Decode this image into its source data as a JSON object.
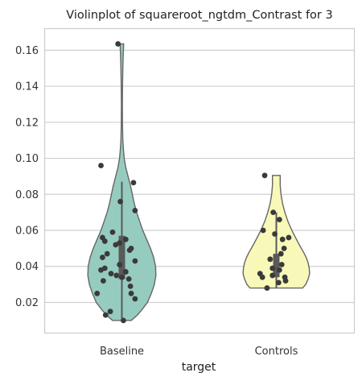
{
  "chart_data": {
    "type": "violin",
    "title": "Violinplot of squareroot_ngtdm_Contrast for 3",
    "xlabel": "target",
    "ylabel": "",
    "categories": [
      "Baseline",
      "Controls"
    ],
    "ylim": [
      0.003,
      0.172
    ],
    "yticks": [
      0.02,
      0.04,
      0.06,
      0.08,
      0.1,
      0.12,
      0.14,
      0.16
    ],
    "ytick_labels": [
      "0.02",
      "0.04",
      "0.06",
      "0.08",
      "0.10",
      "0.12",
      "0.14",
      "0.16"
    ],
    "grid": "horizontal",
    "colors": {
      "Baseline": "#96cbc0",
      "Controls": "#f8f8b9"
    },
    "series": [
      {
        "category": "Baseline",
        "box": {
          "q1": 0.033,
          "median": 0.041,
          "q3": 0.057,
          "whisker_low": 0.01,
          "whisker_high": 0.087
        },
        "points": [
          {
            "x": -0.05,
            "y": 0.1635
          },
          {
            "x": -0.27,
            "y": 0.096
          },
          {
            "x": 0.15,
            "y": 0.0865
          },
          {
            "x": -0.02,
            "y": 0.076
          },
          {
            "x": 0.17,
            "y": 0.071
          },
          {
            "x": -0.12,
            "y": 0.059
          },
          {
            "x": -0.25,
            "y": 0.056
          },
          {
            "x": -0.22,
            "y": 0.054
          },
          {
            "x": 0.05,
            "y": 0.055
          },
          {
            "x": -0.03,
            "y": 0.053
          },
          {
            "x": -0.08,
            "y": 0.052
          },
          {
            "x": 0.12,
            "y": 0.05
          },
          {
            "x": 0.1,
            "y": 0.049
          },
          {
            "x": -0.19,
            "y": 0.047
          },
          {
            "x": -0.25,
            "y": 0.045
          },
          {
            "x": 0.17,
            "y": 0.043
          },
          {
            "x": -0.03,
            "y": 0.041
          },
          {
            "x": -0.22,
            "y": 0.039
          },
          {
            "x": -0.27,
            "y": 0.038
          },
          {
            "x": 0.05,
            "y": 0.037
          },
          {
            "x": -0.14,
            "y": 0.036
          },
          {
            "x": -0.07,
            "y": 0.035
          },
          {
            "x": 0.0,
            "y": 0.034
          },
          {
            "x": 0.09,
            "y": 0.033
          },
          {
            "x": -0.24,
            "y": 0.032
          },
          {
            "x": 0.11,
            "y": 0.029
          },
          {
            "x": -0.32,
            "y": 0.025
          },
          {
            "x": 0.12,
            "y": 0.025
          },
          {
            "x": 0.17,
            "y": 0.022
          },
          {
            "x": -0.15,
            "y": 0.015
          },
          {
            "x": -0.21,
            "y": 0.013
          },
          {
            "x": 0.02,
            "y": 0.01
          }
        ]
      },
      {
        "category": "Controls",
        "box": {
          "q1": 0.034,
          "median": 0.038,
          "q3": 0.047,
          "whisker_low": 0.028,
          "whisker_high": 0.07
        },
        "points": [
          {
            "x": -0.15,
            "y": 0.0905
          },
          {
            "x": -0.04,
            "y": 0.07
          },
          {
            "x": 0.04,
            "y": 0.066
          },
          {
            "x": -0.17,
            "y": 0.06
          },
          {
            "x": -0.02,
            "y": 0.058
          },
          {
            "x": 0.16,
            "y": 0.056
          },
          {
            "x": 0.08,
            "y": 0.055
          },
          {
            "x": 0.1,
            "y": 0.05
          },
          {
            "x": 0.06,
            "y": 0.047
          },
          {
            "x": -0.08,
            "y": 0.044
          },
          {
            "x": 0.07,
            "y": 0.041
          },
          {
            "x": -0.05,
            "y": 0.039
          },
          {
            "x": 0.04,
            "y": 0.038
          },
          {
            "x": -0.21,
            "y": 0.036
          },
          {
            "x": -0.05,
            "y": 0.035
          },
          {
            "x": -0.18,
            "y": 0.034
          },
          {
            "x": 0.11,
            "y": 0.034
          },
          {
            "x": 0.12,
            "y": 0.032
          },
          {
            "x": 0.03,
            "y": 0.031
          },
          {
            "x": -0.12,
            "y": 0.028
          }
        ]
      }
    ],
    "violins": [
      {
        "category": "Baseline",
        "profile": [
          {
            "y": 0.01,
            "w": 0.12
          },
          {
            "y": 0.013,
            "w": 0.2
          },
          {
            "y": 0.016,
            "w": 0.26
          },
          {
            "y": 0.02,
            "w": 0.33
          },
          {
            "y": 0.025,
            "w": 0.38
          },
          {
            "y": 0.03,
            "w": 0.42
          },
          {
            "y": 0.035,
            "w": 0.44
          },
          {
            "y": 0.04,
            "w": 0.435
          },
          {
            "y": 0.045,
            "w": 0.41
          },
          {
            "y": 0.05,
            "w": 0.37
          },
          {
            "y": 0.055,
            "w": 0.32
          },
          {
            "y": 0.06,
            "w": 0.27
          },
          {
            "y": 0.065,
            "w": 0.23
          },
          {
            "y": 0.07,
            "w": 0.19
          },
          {
            "y": 0.075,
            "w": 0.16
          },
          {
            "y": 0.08,
            "w": 0.135
          },
          {
            "y": 0.085,
            "w": 0.11
          },
          {
            "y": 0.09,
            "w": 0.08
          },
          {
            "y": 0.095,
            "w": 0.05
          },
          {
            "y": 0.1,
            "w": 0.03
          },
          {
            "y": 0.105,
            "w": 0.02
          },
          {
            "y": 0.11,
            "w": 0.012
          },
          {
            "y": 0.12,
            "w": 0.007
          },
          {
            "y": 0.13,
            "w": 0.006
          },
          {
            "y": 0.14,
            "w": 0.008
          },
          {
            "y": 0.15,
            "w": 0.012
          },
          {
            "y": 0.155,
            "w": 0.016
          },
          {
            "y": 0.16,
            "w": 0.02
          },
          {
            "y": 0.1635,
            "w": 0.023
          }
        ]
      },
      {
        "category": "Controls",
        "profile": [
          {
            "y": 0.028,
            "w": 0.34
          },
          {
            "y": 0.03,
            "w": 0.38
          },
          {
            "y": 0.033,
            "w": 0.41
          },
          {
            "y": 0.036,
            "w": 0.43
          },
          {
            "y": 0.039,
            "w": 0.425
          },
          {
            "y": 0.042,
            "w": 0.41
          },
          {
            "y": 0.045,
            "w": 0.385
          },
          {
            "y": 0.048,
            "w": 0.35
          },
          {
            "y": 0.051,
            "w": 0.31
          },
          {
            "y": 0.055,
            "w": 0.26
          },
          {
            "y": 0.06,
            "w": 0.2
          },
          {
            "y": 0.065,
            "w": 0.15
          },
          {
            "y": 0.07,
            "w": 0.11
          },
          {
            "y": 0.075,
            "w": 0.08
          },
          {
            "y": 0.08,
            "w": 0.06
          },
          {
            "y": 0.085,
            "w": 0.05
          },
          {
            "y": 0.088,
            "w": 0.05
          },
          {
            "y": 0.0905,
            "w": 0.05
          }
        ]
      }
    ]
  }
}
